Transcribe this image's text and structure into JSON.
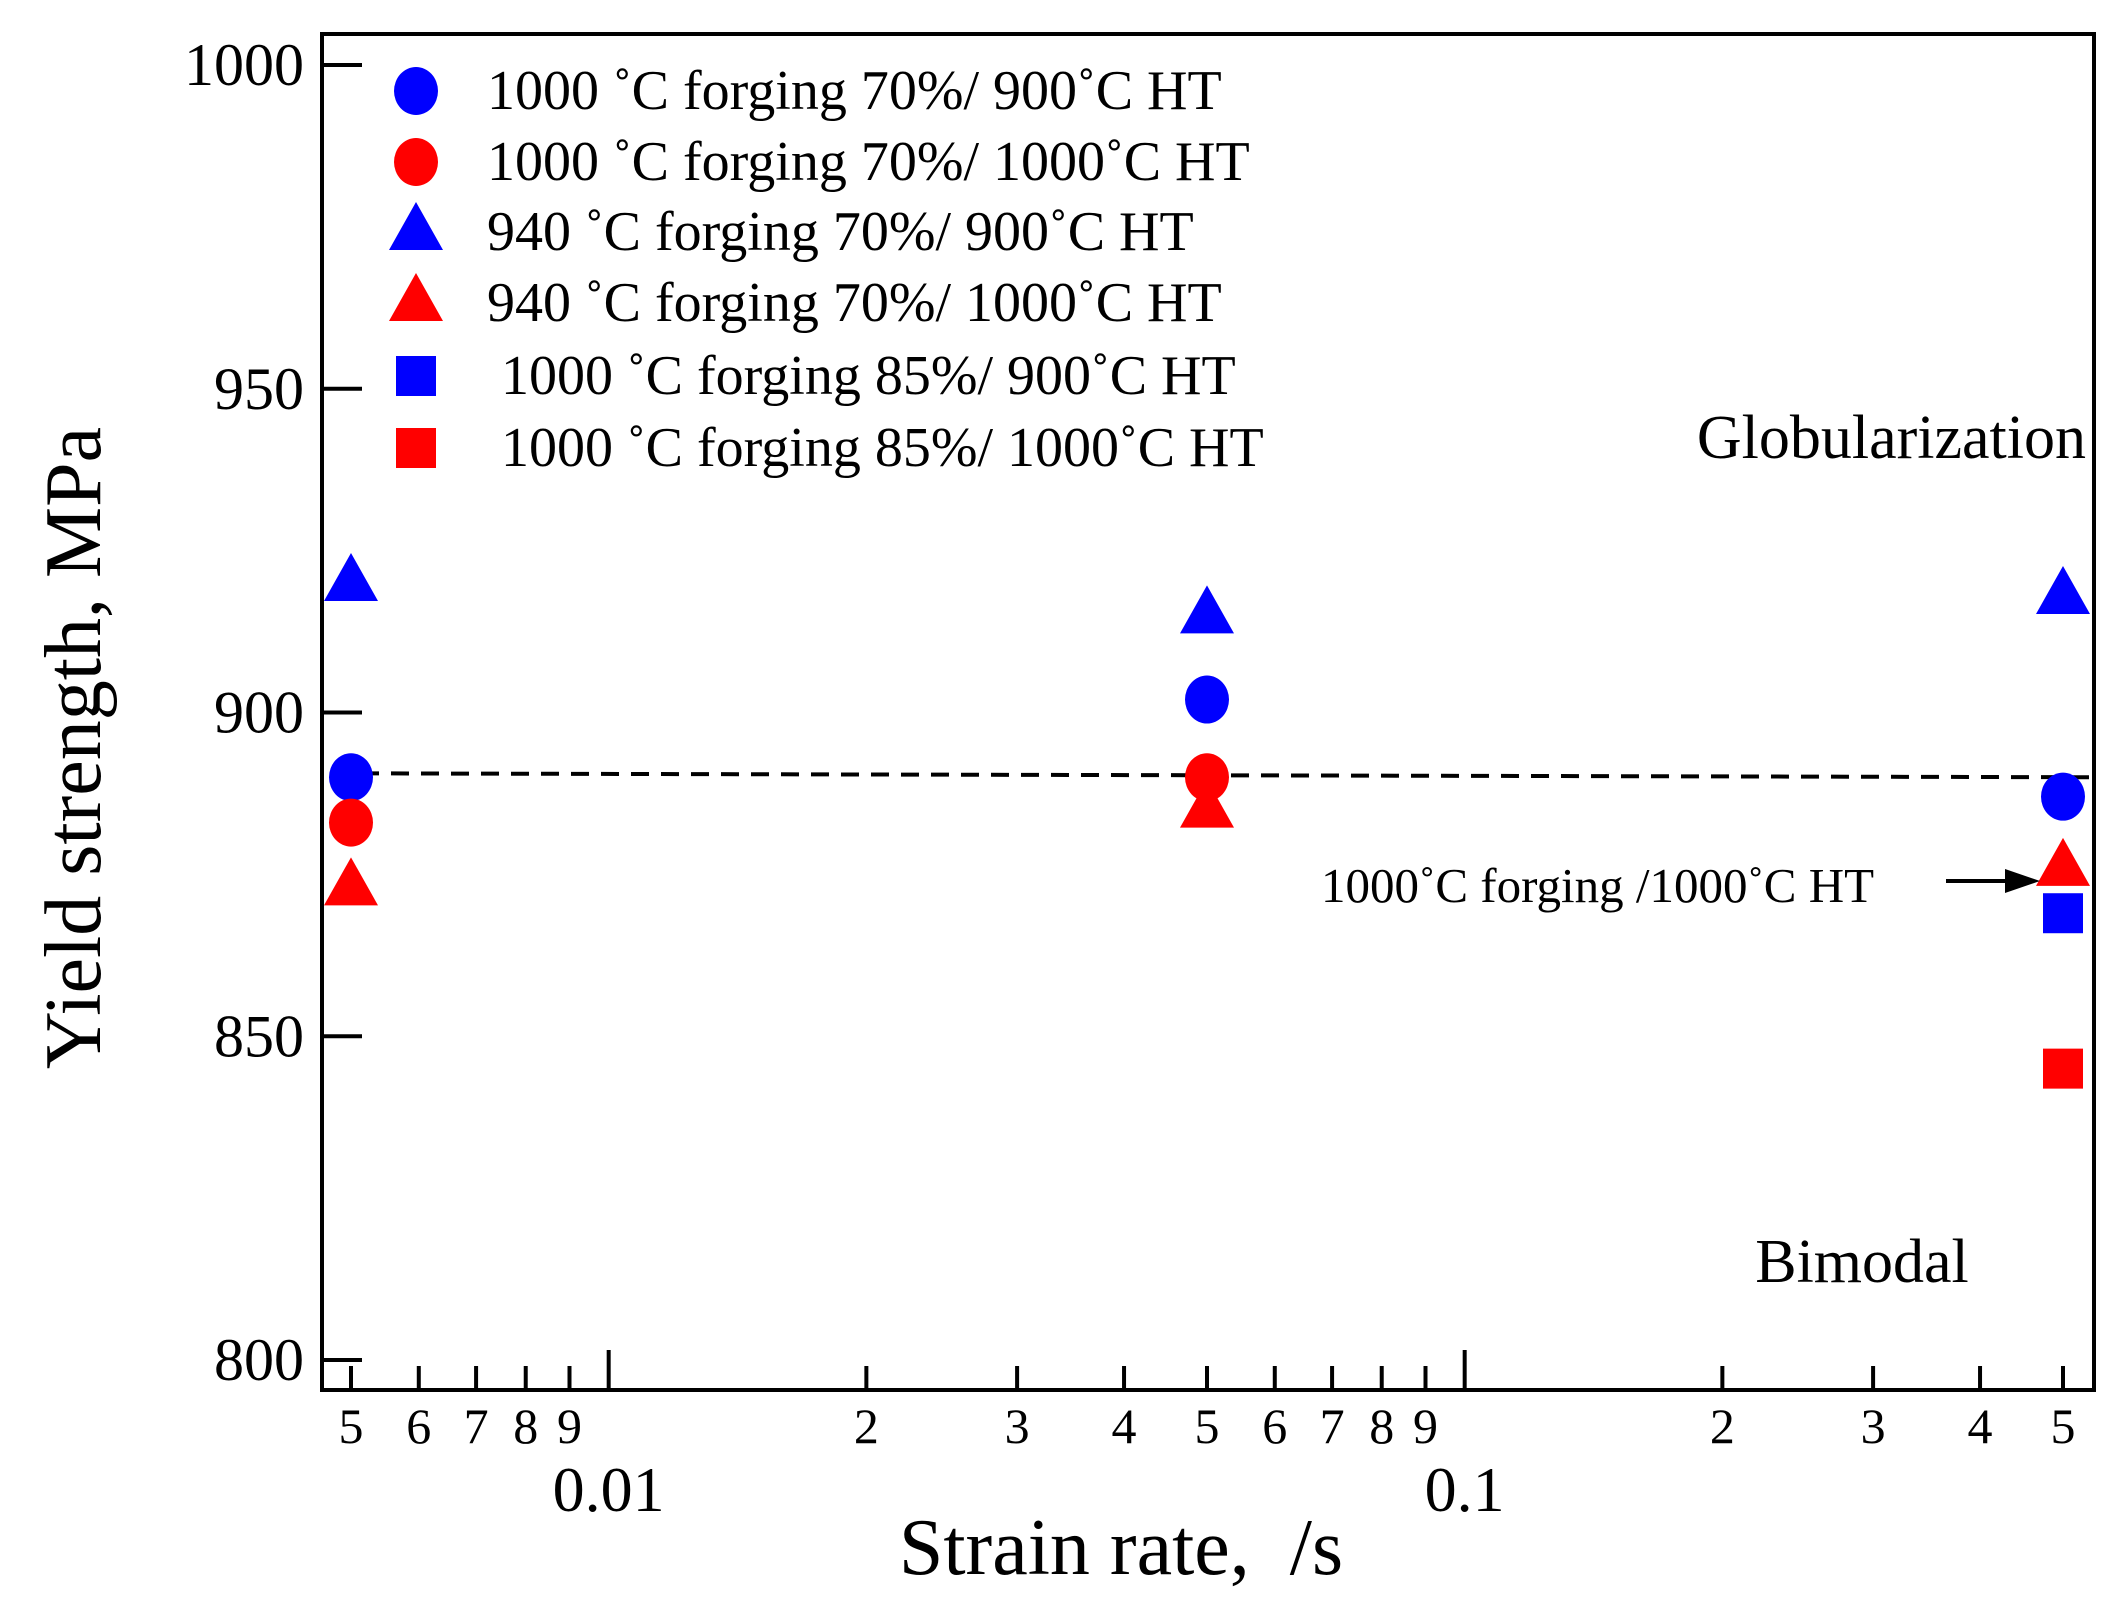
{
  "chart_data": {
    "type": "scatter",
    "title": "",
    "xlabel": "Strain rate,  /s",
    "ylabel": "Yield strength, MPa",
    "xscale": "log",
    "xlim": [
      0.0045,
      0.55
    ],
    "ylim": [
      795,
      1005
    ],
    "yticks": [
      800,
      850,
      900,
      950,
      1000
    ],
    "ytick_labels": [
      "800",
      "850",
      "900",
      "950",
      "1000"
    ],
    "x_minor_ticks": [
      0.005,
      0.006,
      0.007,
      0.008,
      0.009,
      0.02,
      0.03,
      0.04,
      0.05,
      0.06,
      0.07,
      0.08,
      0.09,
      0.2,
      0.3,
      0.4,
      0.5
    ],
    "x_minor_labels": [
      "5",
      "6",
      "7",
      "8",
      "9",
      "2",
      "3",
      "4",
      "5",
      "6",
      "7",
      "8",
      "9",
      "2",
      "3",
      "4",
      "5"
    ],
    "x_major_ticks": [
      0.01,
      0.1
    ],
    "x_major_labels": [
      "0.01",
      "0.1"
    ],
    "grid": false,
    "legend_position": "top-left",
    "series": [
      {
        "name": "1000 ˚C forging 70%/ 900˚C HT",
        "marker": "circle",
        "color": "#0000ff",
        "x": [
          0.005,
          0.05,
          0.5
        ],
        "y": [
          890,
          902,
          887
        ]
      },
      {
        "name": "1000 ˚C forging 70%/ 1000˚C HT",
        "marker": "circle",
        "color": "#ff0000",
        "x": [
          0.005,
          0.05
        ],
        "y": [
          883,
          890
        ]
      },
      {
        "name": "940 ˚C forging 70%/ 900˚C HT",
        "marker": "triangle",
        "color": "#0000ff",
        "x": [
          0.005,
          0.05,
          0.5
        ],
        "y": [
          920,
          915,
          918
        ]
      },
      {
        "name": "940 ˚C forging 70%/ 1000˚C HT",
        "marker": "triangle",
        "color": "#ff0000",
        "x": [
          0.005,
          0.05,
          0.5
        ],
        "y": [
          873,
          885,
          876
        ]
      },
      {
        "name": " 1000 ˚C forging 85%/ 900˚C HT",
        "marker": "square",
        "color": "#0000ff",
        "x": [
          0.5
        ],
        "y": [
          869
        ]
      },
      {
        "name": " 1000 ˚C forging 85%/ 1000˚C HT",
        "marker": "square",
        "color": "#ff0000",
        "x": [
          0.5
        ],
        "y": [
          845
        ]
      }
    ],
    "reference_line": {
      "style": "dashed",
      "color": "#000000",
      "x": [
        0.005,
        0.55
      ],
      "y": [
        890.6,
        890
      ]
    },
    "annotations": {
      "upper_region": "Globularization",
      "lower_region": "Bimodal",
      "arrow_label": "1000˚C forging /1000˚C HT"
    }
  }
}
